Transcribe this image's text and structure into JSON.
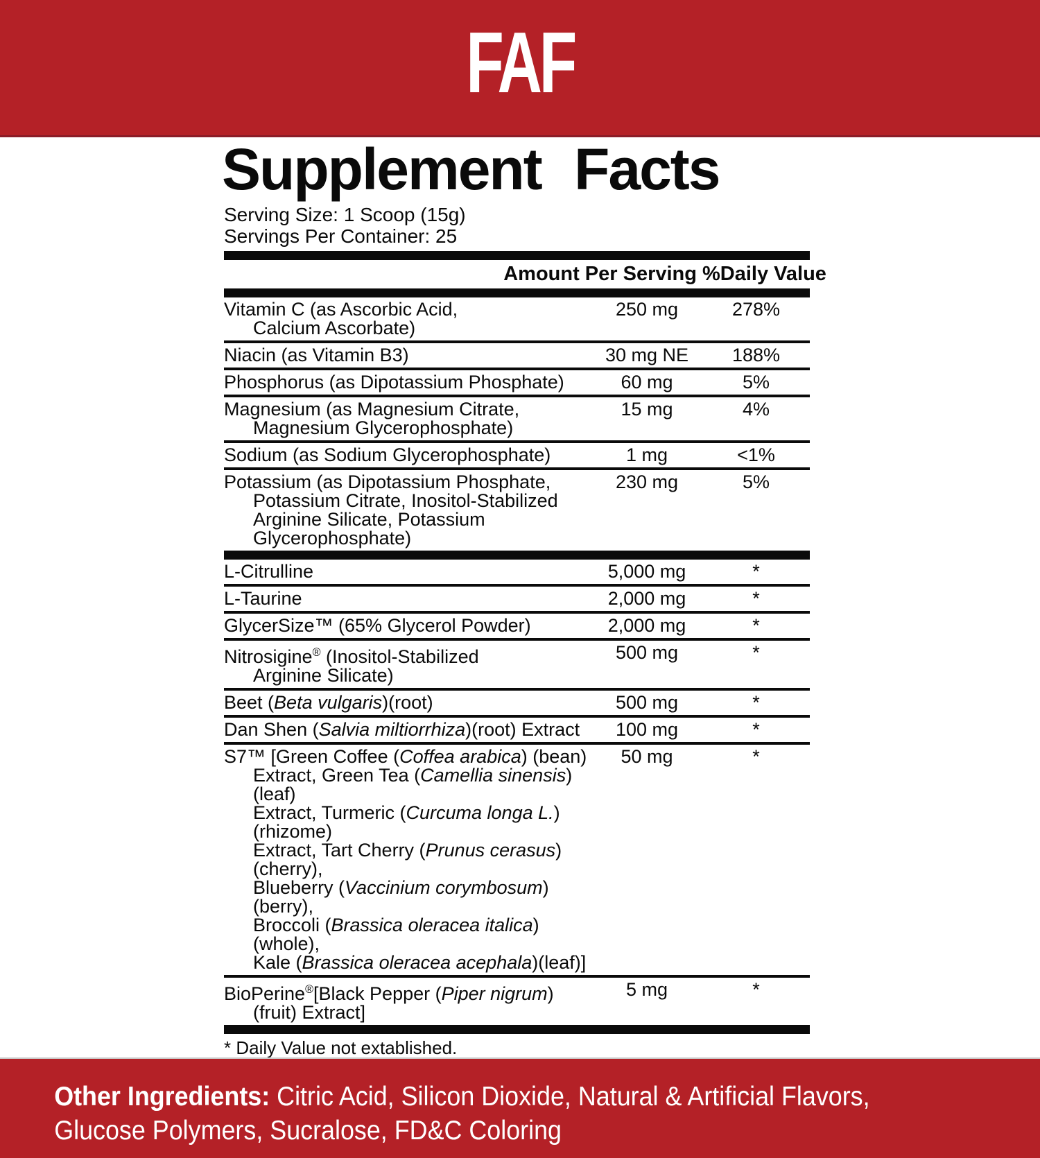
{
  "brand": {
    "logo_text": "FAF"
  },
  "panel": {
    "title": "Supplement Facts",
    "serving_size": "Serving Size: 1 Scoop (15g)",
    "servings_per_container": "Servings Per Container: 25",
    "col_amount": "Amount Per Serving",
    "col_dv": "%Daily Value",
    "footnote": "* Daily Value not extablished."
  },
  "table": {
    "groups": [
      {
        "rows": [
          {
            "lines": [
              [
                {
                  "t": "Vitamin C (as Ascorbic Acid,"
                }
              ],
              [
                {
                  "t": "Calcium Ascorbate)"
                }
              ]
            ],
            "amount": "250 mg",
            "dv": "278%"
          },
          {
            "lines": [
              [
                {
                  "t": "Niacin (as Vitamin B3)"
                }
              ]
            ],
            "amount": "30 mg NE",
            "dv": "188%"
          },
          {
            "lines": [
              [
                {
                  "t": "Phosphorus (as Dipotassium Phosphate)"
                }
              ]
            ],
            "amount": "60 mg",
            "dv": "5%"
          },
          {
            "lines": [
              [
                {
                  "t": "Magnesium (as Magnesium Citrate,"
                }
              ],
              [
                {
                  "t": "Magnesium Glycerophosphate)"
                }
              ]
            ],
            "amount": "15 mg",
            "dv": "4%"
          },
          {
            "lines": [
              [
                {
                  "t": "Sodium (as Sodium Glycerophosphate)"
                }
              ]
            ],
            "amount": "1 mg",
            "dv": "<1%"
          },
          {
            "lines": [
              [
                {
                  "t": "Potassium (as Dipotassium Phosphate,"
                }
              ],
              [
                {
                  "t": "Potassium Citrate, Inositol-Stabilized"
                }
              ],
              [
                {
                  "t": "Arginine Silicate, Potassium Glycerophosphate)"
                }
              ]
            ],
            "amount": "230 mg",
            "dv": "5%"
          }
        ]
      },
      {
        "rows": [
          {
            "lines": [
              [
                {
                  "t": "L-Citrulline"
                }
              ]
            ],
            "amount": "5,000 mg",
            "dv": "*"
          },
          {
            "lines": [
              [
                {
                  "t": "L-Taurine"
                }
              ]
            ],
            "amount": "2,000 mg",
            "dv": "*"
          },
          {
            "lines": [
              [
                {
                  "t": "GlycerSize™ (65% Glycerol Powder)"
                }
              ]
            ],
            "amount": "2,000 mg",
            "dv": "*"
          },
          {
            "lines": [
              [
                {
                  "t": "Nitrosigine"
                },
                {
                  "t": "®",
                  "s": 1
                },
                {
                  "t": " (Inositol-Stabilized"
                }
              ],
              [
                {
                  "t": "Arginine Silicate)"
                }
              ]
            ],
            "amount": "500 mg",
            "dv": "*"
          },
          {
            "lines": [
              [
                {
                  "t": "Beet ("
                },
                {
                  "t": "Beta vulgaris",
                  "i": 1
                },
                {
                  "t": ")(root)"
                }
              ]
            ],
            "amount": "500 mg",
            "dv": "*"
          },
          {
            "lines": [
              [
                {
                  "t": "Dan Shen ("
                },
                {
                  "t": "Salvia miltiorrhiza",
                  "i": 1
                },
                {
                  "t": ")(root) Extract"
                }
              ]
            ],
            "amount": "100 mg",
            "dv": "*"
          },
          {
            "lines": [
              [
                {
                  "t": "S7™ [Green Coffee ("
                },
                {
                  "t": "Coffea arabica",
                  "i": 1
                },
                {
                  "t": ") (bean)"
                }
              ],
              [
                {
                  "t": "Extract, Green Tea ("
                },
                {
                  "t": "Camellia sinensis",
                  "i": 1
                },
                {
                  "t": ")(leaf)"
                }
              ],
              [
                {
                  "t": "Extract, Turmeric ("
                },
                {
                  "t": "Curcuma longa L.",
                  "i": 1
                },
                {
                  "t": ")(rhizome)"
                }
              ],
              [
                {
                  "t": "Extract, Tart Cherry ("
                },
                {
                  "t": "Prunus cerasus",
                  "i": 1
                },
                {
                  "t": ")(cherry),"
                }
              ],
              [
                {
                  "t": "Blueberry ("
                },
                {
                  "t": "Vaccinium corymbosum",
                  "i": 1
                },
                {
                  "t": ")(berry),"
                }
              ],
              [
                {
                  "t": "Broccoli ("
                },
                {
                  "t": "Brassica oleracea italica",
                  "i": 1
                },
                {
                  "t": ")(whole),"
                }
              ],
              [
                {
                  "t": "Kale ("
                },
                {
                  "t": "Brassica oleracea acephala",
                  "i": 1
                },
                {
                  "t": ")(leaf)]"
                }
              ]
            ],
            "amount": "50 mg",
            "dv": "*"
          },
          {
            "lines": [
              [
                {
                  "t": "BioPerine"
                },
                {
                  "t": "®",
                  "s": 1
                },
                {
                  "t": "[Black Pepper ("
                },
                {
                  "t": "Piper nigrum",
                  "i": 1
                },
                {
                  "t": ")"
                }
              ],
              [
                {
                  "t": "(fruit) Extract]"
                }
              ]
            ],
            "amount": "5 mg",
            "dv": "*"
          }
        ]
      }
    ]
  },
  "other_ingredients": {
    "label": "Other Ingredients:",
    "items": " Citric Acid, Silicon Dioxide, Natural & Artificial Flavors, Glucose Polymers, Sucralose, FD&C Coloring"
  },
  "colors": {
    "brand_red": "#B42127",
    "rule_black": "#0A0A0A",
    "text_white": "#FFFFFF"
  }
}
